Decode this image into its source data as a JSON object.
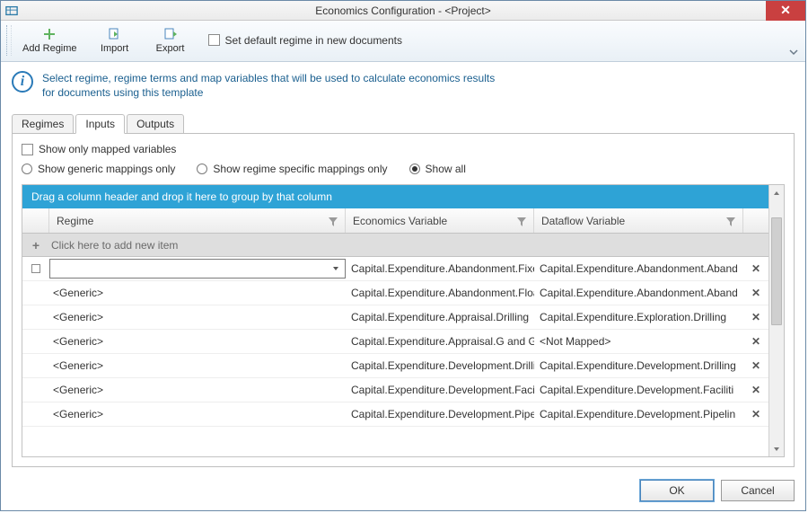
{
  "window": {
    "title": "Economics Configuration - <Project>",
    "close_glyph": "✕"
  },
  "toolbar": {
    "add_regime": "Add Regime",
    "import": "Import",
    "export": "Export",
    "default_regime_label": "Set default regime in new documents",
    "default_regime_checked": false
  },
  "info": {
    "text": "Select regime, regime terms and map variables that will be used to calculate economics results for documents using this template"
  },
  "tabs": {
    "items": [
      {
        "label": "Regimes",
        "active": false
      },
      {
        "label": "Inputs",
        "active": true
      },
      {
        "label": "Outputs",
        "active": false
      }
    ]
  },
  "filters": {
    "show_only_mapped_label": "Show only mapped variables",
    "show_only_mapped_checked": false,
    "radios": [
      {
        "label": "Show generic mappings only",
        "selected": false
      },
      {
        "label": "Show regime specific mappings only",
        "selected": false
      },
      {
        "label": "Show all",
        "selected": true
      }
    ]
  },
  "grid": {
    "group_hint": "Drag a column header and drop it here to group by that column",
    "columns": {
      "regime": "Regime",
      "econ_var": "Economics Variable",
      "dataflow_var": "Dataflow Variable"
    },
    "new_item_hint": "Click here to add new item",
    "rows": [
      {
        "regime": "",
        "editor": true,
        "ev": "Capital.Expenditure.Abandonment.Fixed",
        "dv": "Capital.Expenditure.Abandonment.Aband"
      },
      {
        "regime": "<Generic>",
        "ev": "Capital.Expenditure.Abandonment.Floati",
        "dv": "Capital.Expenditure.Abandonment.Aband"
      },
      {
        "regime": "<Generic>",
        "ev": "Capital.Expenditure.Appraisal.Drilling",
        "dv": "Capital.Expenditure.Exploration.Drilling"
      },
      {
        "regime": "<Generic>",
        "ev": "Capital.Expenditure.Appraisal.G and G",
        "dv": "<Not Mapped>"
      },
      {
        "regime": "<Generic>",
        "ev": "Capital.Expenditure.Development.Drilling",
        "dv": "Capital.Expenditure.Development.Drilling"
      },
      {
        "regime": "<Generic>",
        "ev": "Capital.Expenditure.Development.Faciliti",
        "dv": "Capital.Expenditure.Development.Faciliti"
      },
      {
        "regime": "<Generic>",
        "ev": "Capital.Expenditure.Development.Pipelin",
        "dv": "Capital.Expenditure.Development.Pipelin"
      }
    ]
  },
  "footer": {
    "ok": "OK",
    "cancel": "Cancel"
  },
  "colors": {
    "group_bar": "#2ea3d6",
    "info_text": "#1a5f8f",
    "titlebar_close": "#c94040",
    "window_border": "#6b8aa7"
  }
}
